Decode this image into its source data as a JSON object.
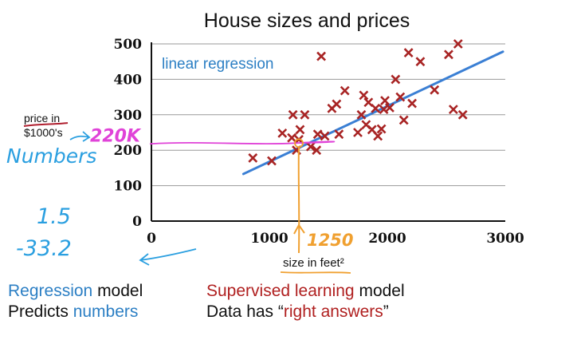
{
  "chart_data": {
    "type": "scatter",
    "title": "House sizes and prices",
    "xlabel": "size in feet²",
    "ylabel": "price in $1000's",
    "xlim": [
      0,
      3000
    ],
    "ylim": [
      0,
      500
    ],
    "x_ticks": [
      "0",
      "1000",
      "2000",
      "3000"
    ],
    "y_ticks": [
      "0",
      "100",
      "200",
      "300",
      "400",
      "500"
    ],
    "grid": "horizontal",
    "series": [
      {
        "marker": "x",
        "color": "#a82424",
        "points": [
          [
            860,
            178
          ],
          [
            1020,
            170
          ],
          [
            1110,
            248
          ],
          [
            1190,
            235
          ],
          [
            1200,
            300
          ],
          [
            1230,
            200
          ],
          [
            1250,
            230
          ],
          [
            1260,
            258
          ],
          [
            1300,
            300
          ],
          [
            1350,
            210
          ],
          [
            1400,
            200
          ],
          [
            1410,
            245
          ],
          [
            1440,
            465
          ],
          [
            1470,
            240
          ],
          [
            1530,
            318
          ],
          [
            1570,
            330
          ],
          [
            1590,
            245
          ],
          [
            1640,
            368
          ],
          [
            1750,
            250
          ],
          [
            1780,
            300
          ],
          [
            1800,
            355
          ],
          [
            1820,
            272
          ],
          [
            1840,
            335
          ],
          [
            1870,
            258
          ],
          [
            1900,
            318
          ],
          [
            1920,
            240
          ],
          [
            1950,
            260
          ],
          [
            1970,
            315
          ],
          [
            1980,
            340
          ],
          [
            2020,
            320
          ],
          [
            2070,
            400
          ],
          [
            2110,
            350
          ],
          [
            2140,
            285
          ],
          [
            2180,
            475
          ],
          [
            2210,
            332
          ],
          [
            2280,
            450
          ],
          [
            2400,
            370
          ],
          [
            2520,
            470
          ],
          [
            2560,
            315
          ],
          [
            2600,
            500
          ],
          [
            2640,
            300
          ]
        ]
      }
    ],
    "fit_line": {
      "x": [
        780,
        2980
      ],
      "y": [
        133,
        478
      ],
      "color": "#3a7fd4"
    },
    "annotations": {
      "fit_label": "linear regression",
      "y_readout": "220K",
      "x_readout": "1250",
      "query": {
        "x": 1250,
        "y": 220
      },
      "y_side_note": "Numbers",
      "params": [
        "1.5",
        "-33.2"
      ]
    }
  },
  "captions": {
    "left_line1_a": "Regression",
    "left_line1_b": " model",
    "left_line2_a": "Predicts ",
    "left_line2_b": "numbers",
    "right_line1_a": "Supervised learning",
    "right_line1_b": " model",
    "right_line2_a": "Data has “",
    "right_line2_b": "right answers",
    "right_line2_c": "”"
  },
  "colors": {
    "axis": "#111111",
    "grid": "#999999",
    "marker": "#a82424",
    "fit": "#3a7fd4",
    "ink_blue": "#2a9fe0",
    "ink_magenta": "#e043d8",
    "ink_orange": "#f0a030",
    "ink_red": "#b02030"
  }
}
